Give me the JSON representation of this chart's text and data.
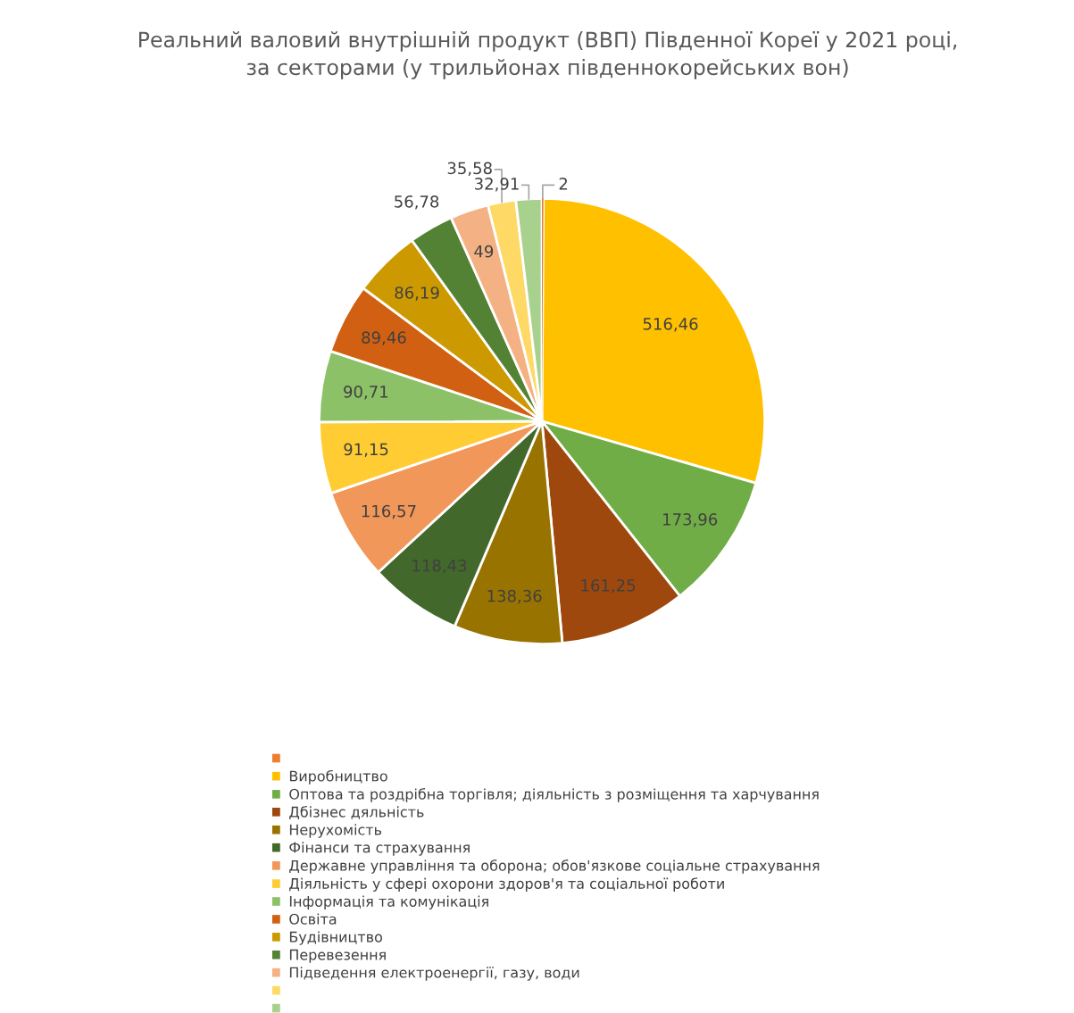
{
  "chart_data": {
    "type": "pie",
    "title": "Реальний валовий внутрішній продукт (ВВП) Південної Кореї у 2021 році,\nза секторами (у трильйонах південнокорейських вон)",
    "categories": [
      null,
      "Виробництво",
      "Оптова та роздрібна торгівля; діяльність з розміщення та харчування",
      "Дбізнес дяльність",
      "Нерухомість",
      "Фінанси та страхування",
      "Державне управління та оборона; обов'язкове соціальне страхування",
      "Діяльність у сфері охорони здоров'я та соціальної роботи",
      "Інформація та комунікація",
      "Освіта",
      "Будівництво",
      "Перевезення",
      "Підведення електроенергії, газу, води",
      null,
      null
    ],
    "values": [
      2,
      516.46,
      173.96,
      161.25,
      138.36,
      118.43,
      116.57,
      91.15,
      90.71,
      89.46,
      86.19,
      56.78,
      49,
      35.58,
      32.91
    ],
    "value_labels": [
      "2",
      "516,46",
      "173,96",
      "161,25",
      "138,36",
      "118,43",
      "116,57",
      "91,15",
      "90,71",
      "89,46",
      "86,19",
      "56,78",
      "49",
      "35,58",
      "32,91"
    ],
    "colors": [
      "#ed7d31",
      "#ffc000",
      "#70ad47",
      "#9e480e",
      "#997300",
      "#43682b",
      "#f1975a",
      "#ffcd33",
      "#8cc168",
      "#d26012",
      "#cc9a00",
      "#548235",
      "#f4b183",
      "#ffd966",
      "#a9d18e"
    ],
    "legend": "bottom"
  }
}
